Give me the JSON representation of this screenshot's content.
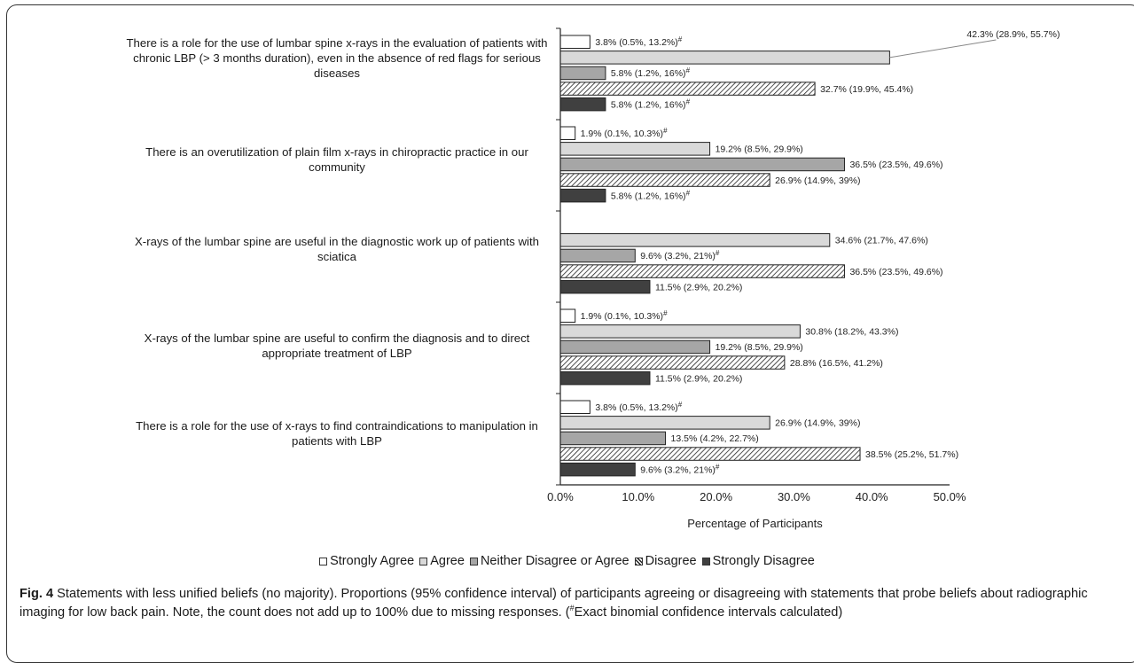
{
  "chart_data": {
    "type": "bar",
    "orientation": "horizontal",
    "categories": [
      "There is a role for the use of lumbar spine x-rays in the evaluation of patients with chronic LBP (> 3 months duration), even in the absence of red flags for serious diseases",
      "There is an overutilization of plain film x-rays in chiropractic practice in our community",
      "X-rays of the lumbar spine are useful in the diagnostic work up of patients with sciatica",
      "X-rays of the lumbar spine are useful to confirm the diagnosis and to direct appropriate treatment of LBP",
      "There is a role for the use of x-rays to find contraindications to manipulation in patients with LBP"
    ],
    "series": [
      {
        "name": "Strongly Agree",
        "values": [
          3.8,
          1.9,
          null,
          1.9,
          3.8
        ],
        "labels": [
          "3.8% (0.5%, 13.2%)#",
          "1.9% (0.1%, 10.3%)#",
          "",
          "1.9% (0.1%, 10.3%)#",
          "3.8% (0.5%, 13.2%)#"
        ]
      },
      {
        "name": "Agree",
        "values": [
          42.3,
          19.2,
          34.6,
          30.8,
          26.9
        ],
        "labels": [
          "42.3% (28.9%, 55.7%)",
          "19.2% (8.5%, 29.9%)",
          "34.6% (21.7%, 47.6%)",
          "30.8% (18.2%, 43.3%)",
          "26.9% (14.9%, 39%)"
        ]
      },
      {
        "name": "Neither Disagree or Agree",
        "values": [
          5.8,
          36.5,
          9.6,
          19.2,
          13.5
        ],
        "labels": [
          "5.8% (1.2%, 16%)#",
          "36.5% (23.5%, 49.6%)",
          "9.6% (3.2%, 21%)#",
          "19.2% (8.5%, 29.9%)",
          "13.5% (4.2%, 22.7%)"
        ]
      },
      {
        "name": "Disagree",
        "values": [
          32.7,
          26.9,
          36.5,
          28.8,
          38.5
        ],
        "labels": [
          "32.7% (19.9%, 45.4%)",
          "26.9% (14.9%, 39%)",
          "36.5% (23.5%, 49.6%)",
          "28.8% (16.5%, 41.2%)",
          "38.5% (25.2%, 51.7%)"
        ]
      },
      {
        "name": "Strongly Disagree",
        "values": [
          5.8,
          5.8,
          11.5,
          11.5,
          9.6
        ],
        "labels": [
          "5.8% (1.2%, 16%)#",
          "5.8% (1.2%, 16%)#",
          "11.5% (2.9%, 20.2%)",
          "11.5% (2.9%, 20.2%)",
          "9.6% (3.2%, 21%)#"
        ]
      }
    ],
    "xlabel": "Percentage of Participants",
    "xlim": [
      0,
      50
    ],
    "xticks": [
      "0.0%",
      "10.0%",
      "20.0%",
      "30.0%",
      "40.0%",
      "50.0%"
    ],
    "grid": false,
    "legend_position": "bottom",
    "colors": {
      "Strongly Agree": "#ffffff",
      "Agree": "#d9d9d9",
      "Neither Disagree or Agree": "#a6a6a6",
      "Disagree": "hatched",
      "Strongly Disagree": "#404040"
    }
  },
  "caption": {
    "figure_label": "Fig. 4",
    "text": "Statements with less unified beliefs (no majority). Proportions (95% confidence interval) of participants agreeing or disagreeing with statements that probe beliefs about radiographic imaging for low back pain. Note, the count does not add up to 100% due to missing responses.",
    "footnote_mark": "#",
    "footnote_text": "Exact binomial confidence intervals calculated"
  }
}
